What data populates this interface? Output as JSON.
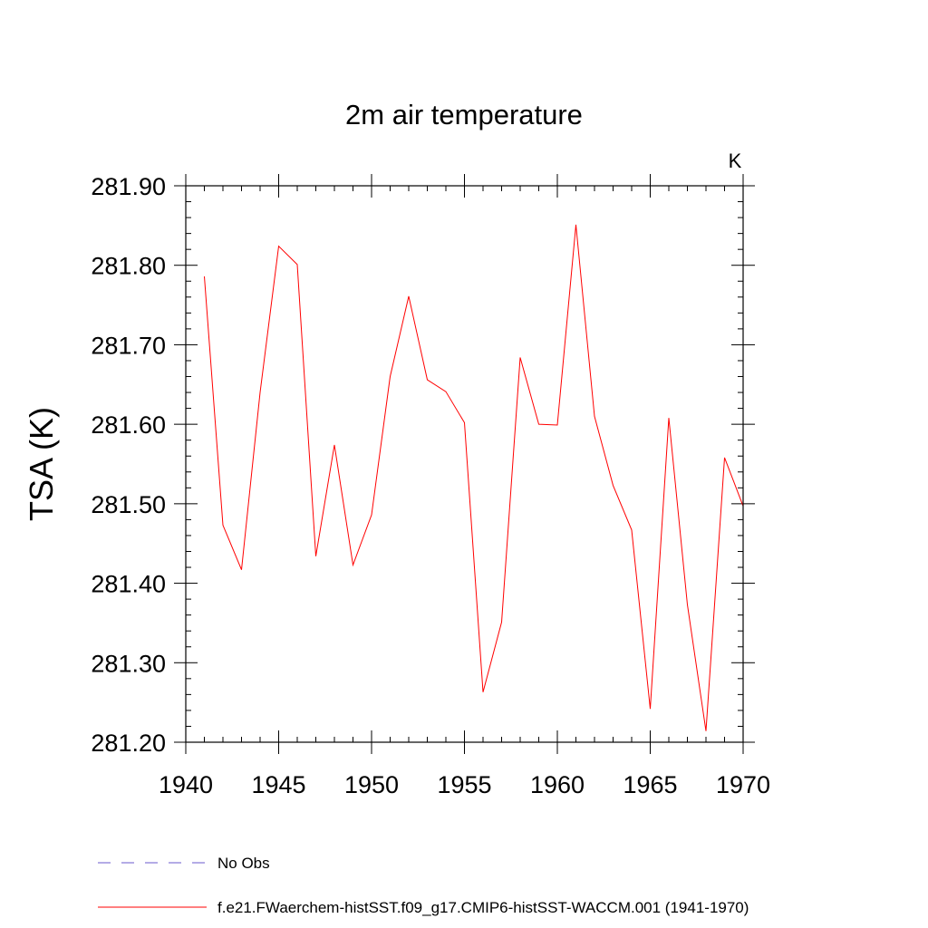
{
  "chart_data": {
    "type": "line",
    "title": "2m air temperature",
    "units_label": "K",
    "xlabel": "",
    "ylabel": "TSA  (K)",
    "xlim": [
      1940,
      1970
    ],
    "ylim": [
      281.2,
      281.9
    ],
    "x_ticks": [
      1940,
      1945,
      1950,
      1955,
      1960,
      1965,
      1970
    ],
    "y_ticks": [
      "281.20",
      "281.30",
      "281.40",
      "281.50",
      "281.60",
      "281.70",
      "281.80",
      "281.90"
    ],
    "grid": false,
    "legend_position": "bottom",
    "series": [
      {
        "name": "f.e21.FWaerchem-histSST.f09_g17.CMIP6-histSST-WACCM.001 (1941-1970)",
        "color": "#ff0000",
        "dash": "solid",
        "x": [
          1941,
          1942,
          1943,
          1944,
          1945,
          1946,
          1947,
          1948,
          1949,
          1950,
          1951,
          1952,
          1953,
          1954,
          1955,
          1956,
          1957,
          1958,
          1959,
          1960,
          1961,
          1962,
          1963,
          1964,
          1965,
          1966,
          1967,
          1968,
          1969,
          1970
        ],
        "y": [
          281.786,
          281.473,
          281.417,
          281.64,
          281.824,
          281.801,
          281.434,
          281.574,
          281.423,
          281.486,
          281.66,
          281.761,
          281.656,
          281.641,
          281.602,
          281.263,
          281.351,
          281.684,
          281.6,
          281.599,
          281.851,
          281.61,
          281.523,
          281.467,
          281.242,
          281.608,
          281.373,
          281.214,
          281.558,
          281.497
        ]
      }
    ],
    "legend": [
      {
        "label": "No Obs",
        "color": "#6a5acd",
        "dash": "dashed"
      },
      {
        "label": "f.e21.FWaerchem-histSST.f09_g17.CMIP6-histSST-WACCM.001 (1941-1970)",
        "color": "#ff0000",
        "dash": "solid"
      }
    ]
  }
}
